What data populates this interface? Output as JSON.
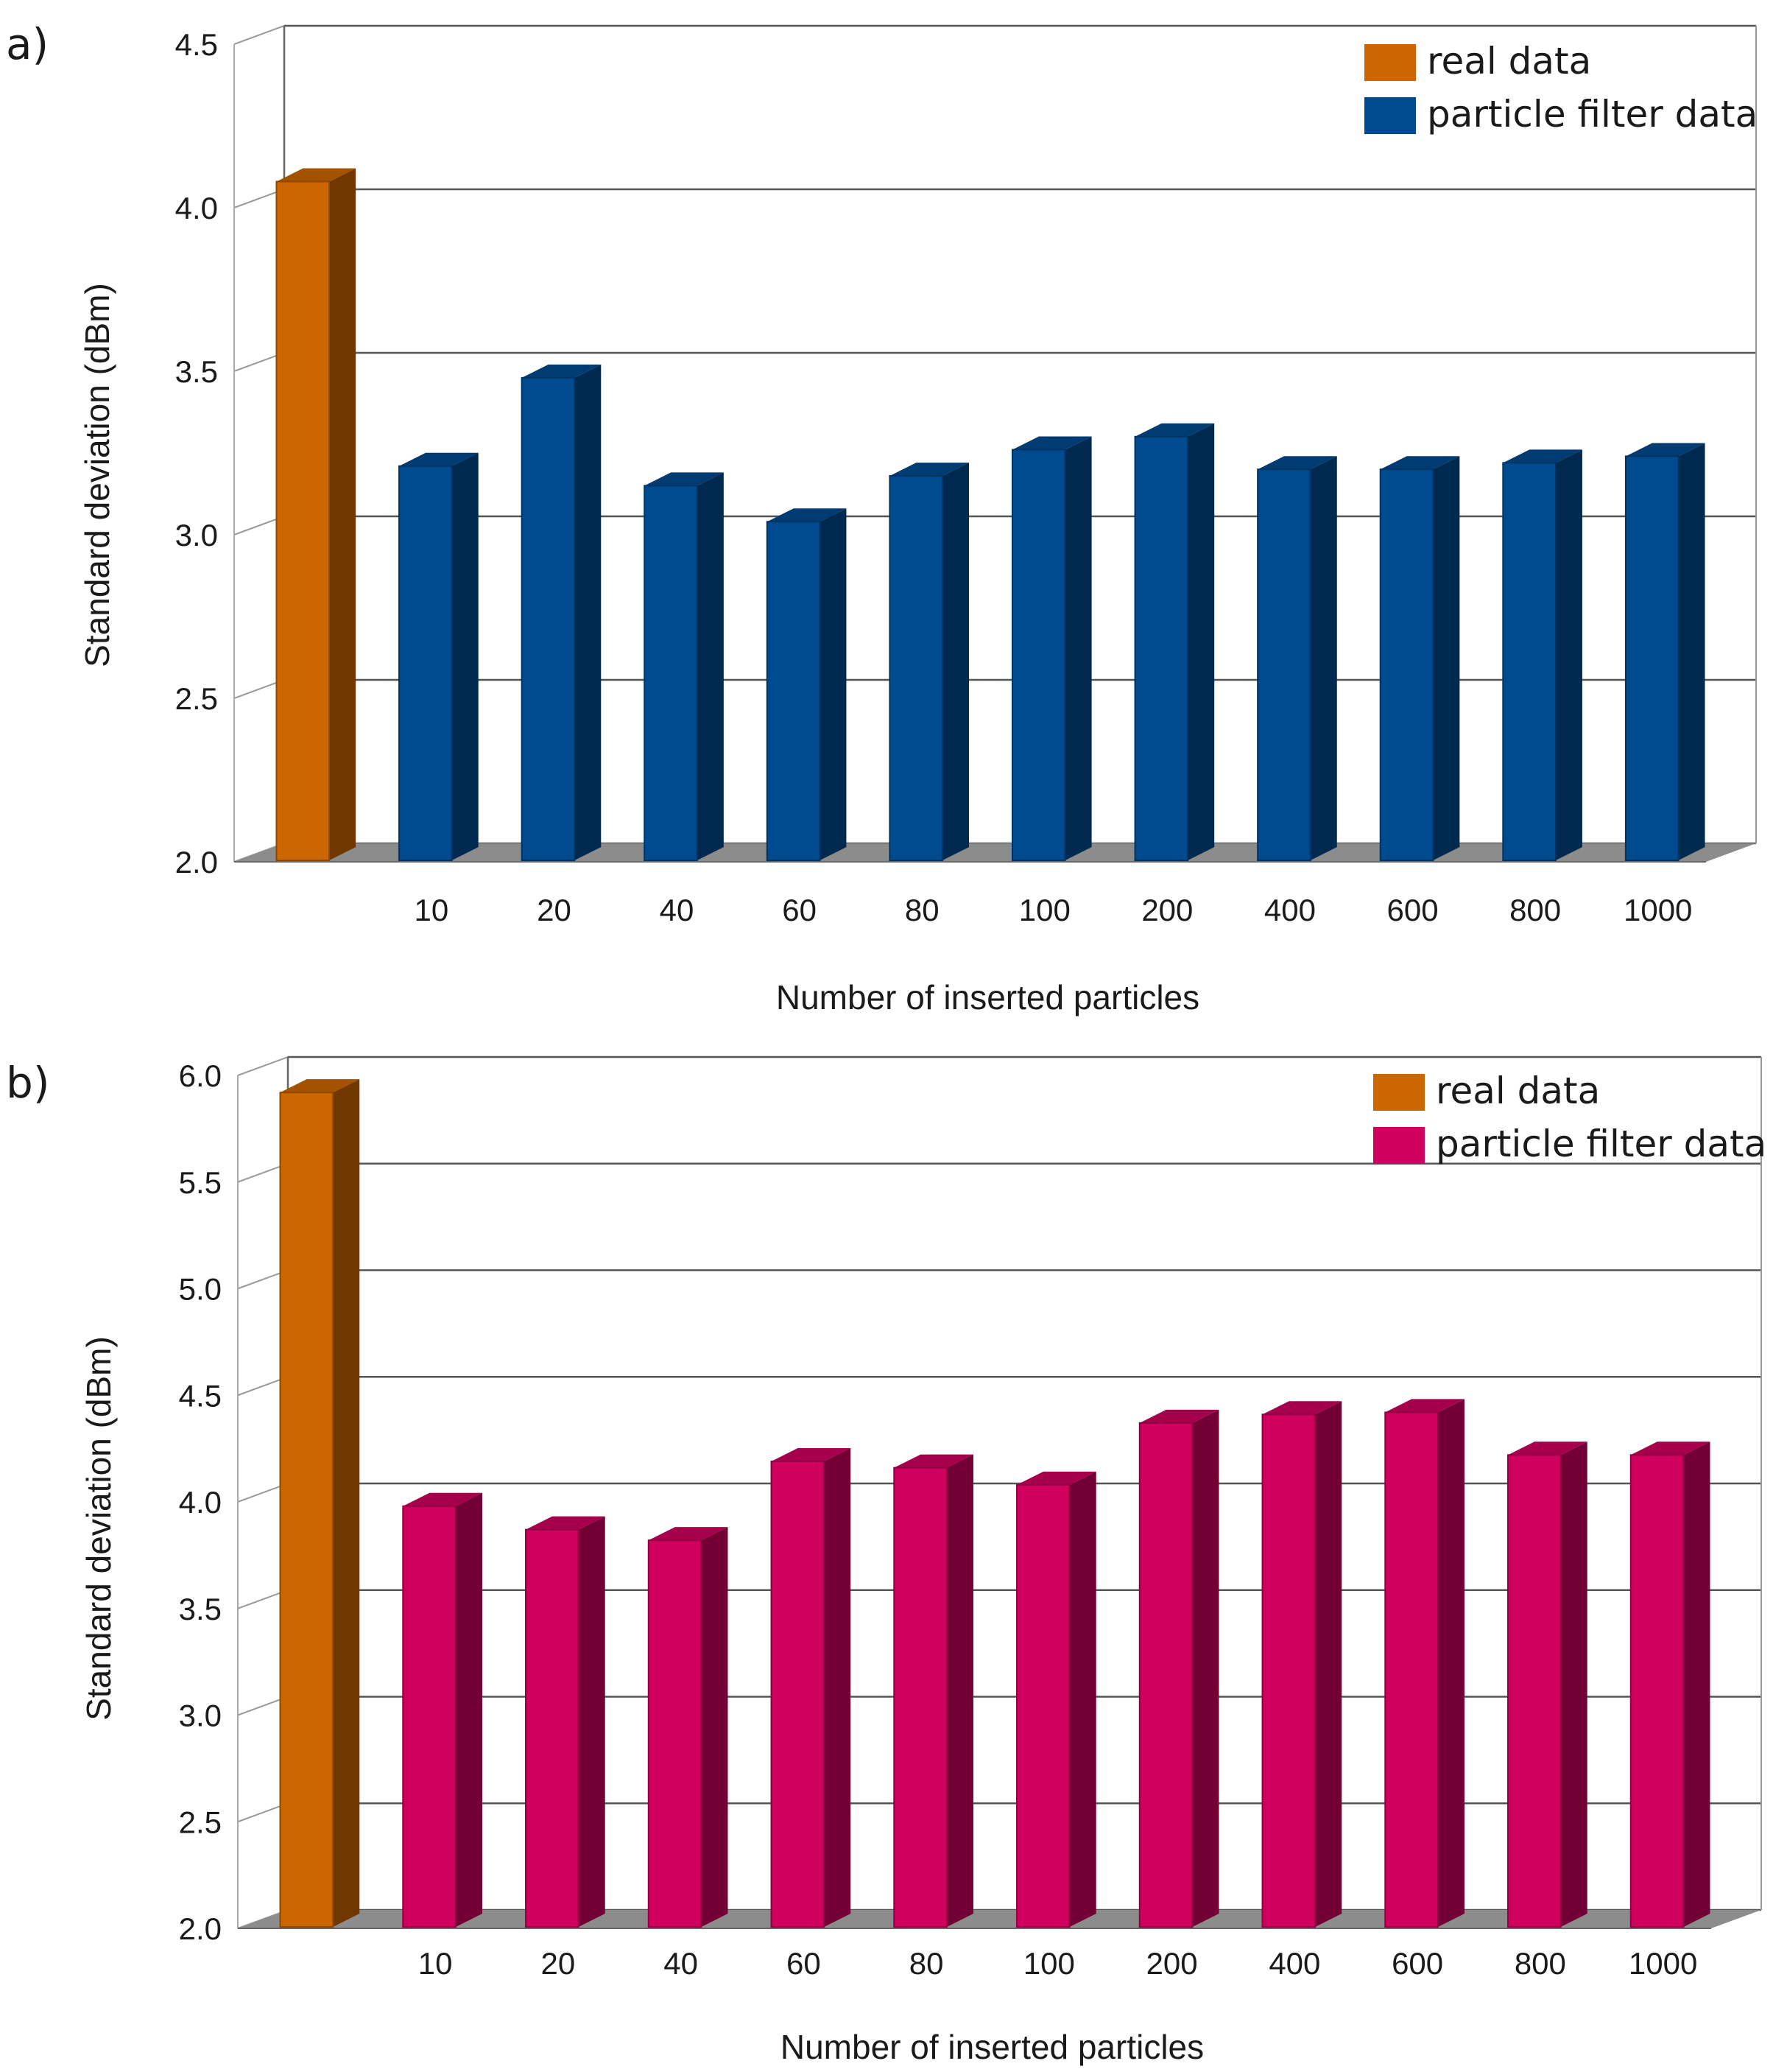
{
  "chart_data": [
    {
      "panel_label": "a)",
      "type": "bar",
      "style": "3d",
      "categories": [
        "",
        "10",
        "20",
        "40",
        "60",
        "80",
        "100",
        "200",
        "400",
        "600",
        "800",
        "1000"
      ],
      "series": [
        {
          "name": "real data",
          "color": "#cc6600",
          "values": [
            4.08,
            null,
            null,
            null,
            null,
            null,
            null,
            null,
            null,
            null,
            null,
            null
          ]
        },
        {
          "name": "particle filter data",
          "color": "#004a8f",
          "values": [
            null,
            3.21,
            3.48,
            3.15,
            3.04,
            3.18,
            3.26,
            3.3,
            3.2,
            3.2,
            3.22,
            3.24
          ]
        }
      ],
      "xlabel": "Number of inserted particles",
      "ylabel": "Standard deviation (dBm)",
      "ylim": [
        2.0,
        4.5
      ],
      "yticks": [
        "2.0",
        "2.5",
        "3.0",
        "3.5",
        "4.0",
        "4.5"
      ],
      "grid": true,
      "legend_position": "top-right"
    },
    {
      "panel_label": "b)",
      "type": "bar",
      "style": "3d",
      "categories": [
        "",
        "10",
        "20",
        "40",
        "60",
        "80",
        "100",
        "200",
        "400",
        "600",
        "800",
        "1000"
      ],
      "series": [
        {
          "name": "real data",
          "color": "#cc6600",
          "values": [
            5.92,
            null,
            null,
            null,
            null,
            null,
            null,
            null,
            null,
            null,
            null,
            null
          ]
        },
        {
          "name": "particle filter data",
          "color": "#d0005f",
          "values": [
            null,
            3.98,
            3.87,
            3.82,
            4.19,
            4.16,
            4.08,
            4.37,
            4.41,
            4.42,
            4.22,
            4.22
          ]
        }
      ],
      "xlabel": "Number of inserted particles",
      "ylabel": "Standard deviation (dBm)",
      "ylim": [
        2.0,
        6.0
      ],
      "yticks": [
        "2.0",
        "2.5",
        "3.0",
        "3.5",
        "4.0",
        "4.5",
        "5.0",
        "5.5",
        "6.0"
      ],
      "grid": true,
      "legend_position": "top-right"
    }
  ]
}
